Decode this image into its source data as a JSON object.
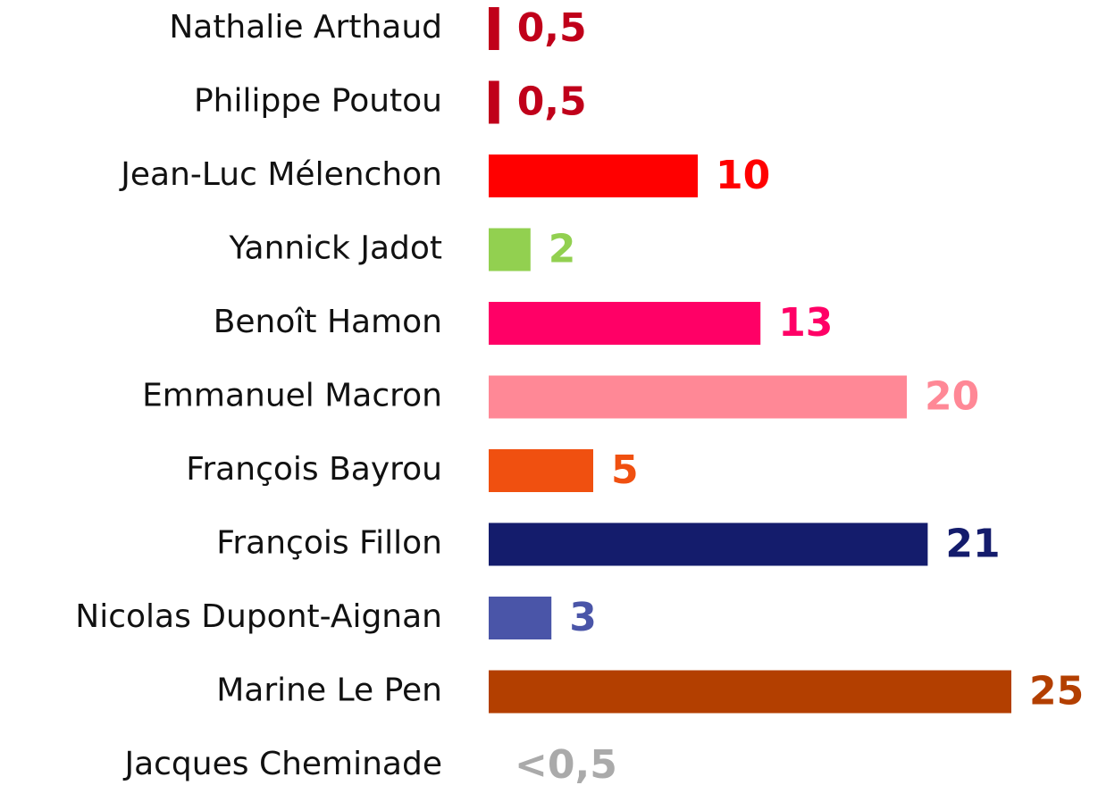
{
  "chart_data": {
    "type": "bar",
    "orientation": "horizontal",
    "categories": [
      "Nathalie Arthaud",
      "Philippe Poutou",
      "Jean-Luc Mélenchon",
      "Yannick Jadot",
      "Benoît Hamon",
      "Emmanuel Macron",
      "François Bayrou",
      "François Fillon",
      "Nicolas Dupont-Aignan",
      "Marine Le Pen",
      "Jacques Cheminade"
    ],
    "values": [
      0.5,
      0.5,
      10,
      2,
      13,
      20,
      5,
      21,
      3,
      25,
      null
    ],
    "value_labels": [
      "0,5",
      "0,5",
      "10",
      "2",
      "13",
      "20",
      "5",
      "21",
      "3",
      "25",
      "<0,5"
    ],
    "colors": [
      "#c0001a",
      "#c0001a",
      "#ff0000",
      "#92d050",
      "#ff0066",
      "#ff8896",
      "#f05010",
      "#141c6c",
      "#4a55a8",
      "#b33f00",
      "#aaaaaa"
    ]
  }
}
